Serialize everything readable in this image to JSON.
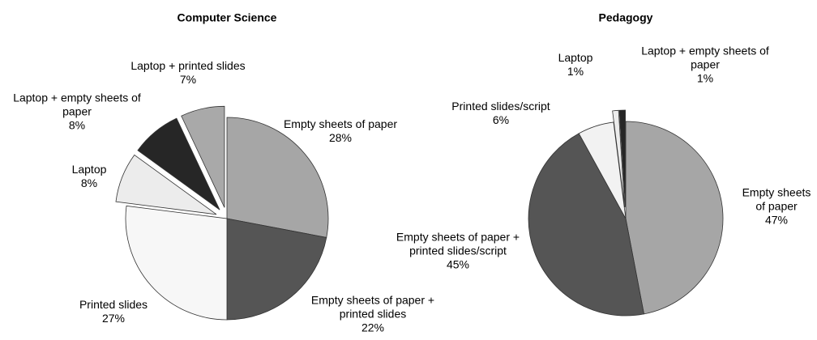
{
  "chart_data": [
    {
      "type": "pie",
      "title": "Computer Science",
      "categories": [
        "Empty sheets of paper",
        "Empty sheets of paper + printed slides",
        "Printed slides",
        "Laptop",
        "Laptop + empty sheets of paper",
        "Laptop + printed slides"
      ],
      "values": [
        28,
        22,
        27,
        8,
        8,
        7
      ],
      "value_labels": [
        "28%",
        "22%",
        "27%",
        "8%",
        "8%",
        "7%"
      ],
      "colors": [
        "#a6a6a6",
        "#555555",
        "#f7f7f7",
        "#ececec",
        "#262626",
        "#a9a9a9"
      ],
      "explode": [
        false,
        false,
        false,
        true,
        true,
        true
      ]
    },
    {
      "type": "pie",
      "title": "Pedagogy",
      "categories": [
        "Empty sheets of paper",
        "Empty sheets of paper + printed slides/script",
        "Printed slides/script",
        "Laptop",
        "Laptop + empty sheets of paper"
      ],
      "values": [
        47,
        45,
        6,
        1,
        1
      ],
      "value_labels": [
        "47%",
        "45%",
        "6%",
        "1%",
        "1%"
      ],
      "colors": [
        "#a6a6a6",
        "#555555",
        "#f2f2f2",
        "#ececec",
        "#262626"
      ],
      "explode": [
        false,
        false,
        false,
        true,
        true
      ]
    }
  ]
}
